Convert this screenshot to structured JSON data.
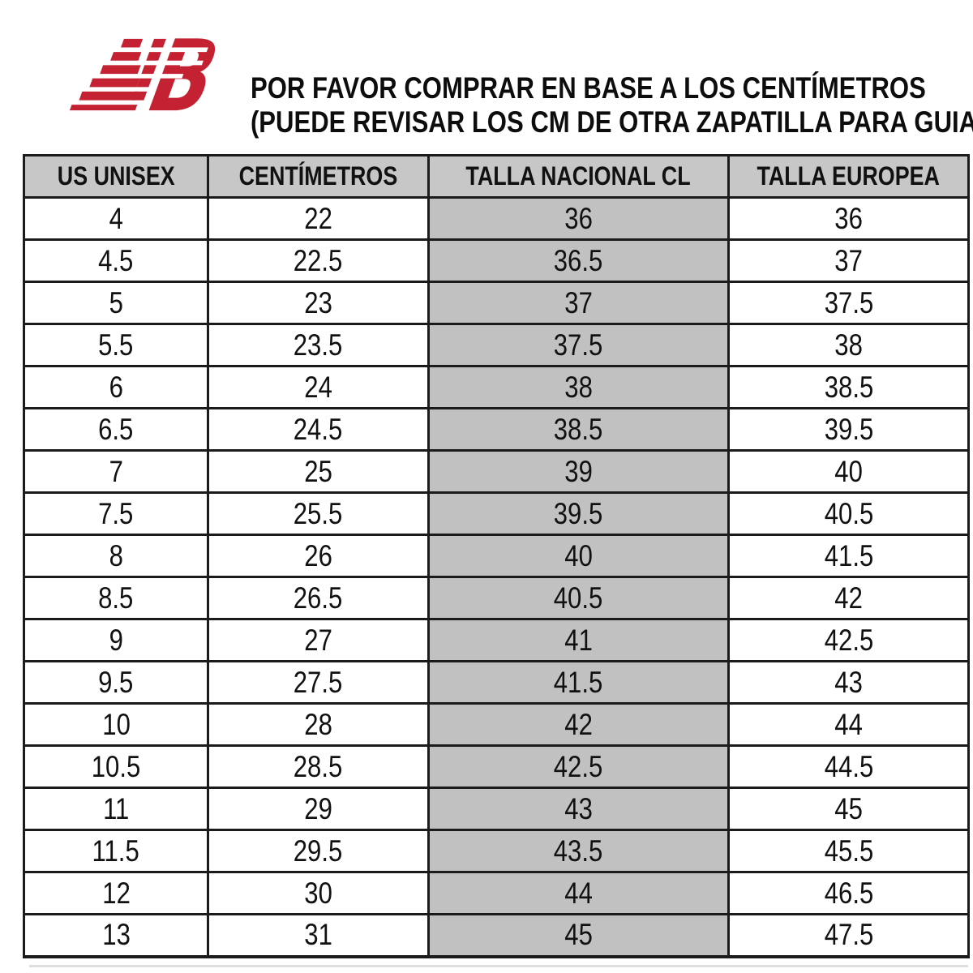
{
  "brand": {
    "name": "New Balance",
    "logo_color": "#c42233"
  },
  "notice": {
    "line1": "POR FAVOR COMPRAR EN BASE A LOS CENTÍMETROS",
    "line2": "(PUEDE REVISAR LOS CM DE OTRA ZAPATILLA PARA GUIARSE)"
  },
  "colors": {
    "header_gray": "#c7c7c7",
    "column_gray": "#c1c1c1",
    "border_dark": "#1b1b1b",
    "logo_red": "#c42233"
  },
  "table": {
    "headers": [
      "US UNISEX",
      "CENTÍMETROS",
      "TALLA NACIONAL CL",
      "TALLA EUROPEA"
    ],
    "highlighted_column_index": 2,
    "rows": [
      [
        "4",
        "22",
        "36",
        "36"
      ],
      [
        "4.5",
        "22.5",
        "36.5",
        "37"
      ],
      [
        "5",
        "23",
        "37",
        "37.5"
      ],
      [
        "5.5",
        "23.5",
        "37.5",
        "38"
      ],
      [
        "6",
        "24",
        "38",
        "38.5"
      ],
      [
        "6.5",
        "24.5",
        "38.5",
        "39.5"
      ],
      [
        "7",
        "25",
        "39",
        "40"
      ],
      [
        "7.5",
        "25.5",
        "39.5",
        "40.5"
      ],
      [
        "8",
        "26",
        "40",
        "41.5"
      ],
      [
        "8.5",
        "26.5",
        "40.5",
        "42"
      ],
      [
        "9",
        "27",
        "41",
        "42.5"
      ],
      [
        "9.5",
        "27.5",
        "41.5",
        "43"
      ],
      [
        "10",
        "28",
        "42",
        "44"
      ],
      [
        "10.5",
        "28.5",
        "42.5",
        "44.5"
      ],
      [
        "11",
        "29",
        "43",
        "45"
      ],
      [
        "11.5",
        "29.5",
        "43.5",
        "45.5"
      ],
      [
        "12",
        "30",
        "44",
        "46.5"
      ],
      [
        "13",
        "31",
        "45",
        "47.5"
      ]
    ]
  }
}
